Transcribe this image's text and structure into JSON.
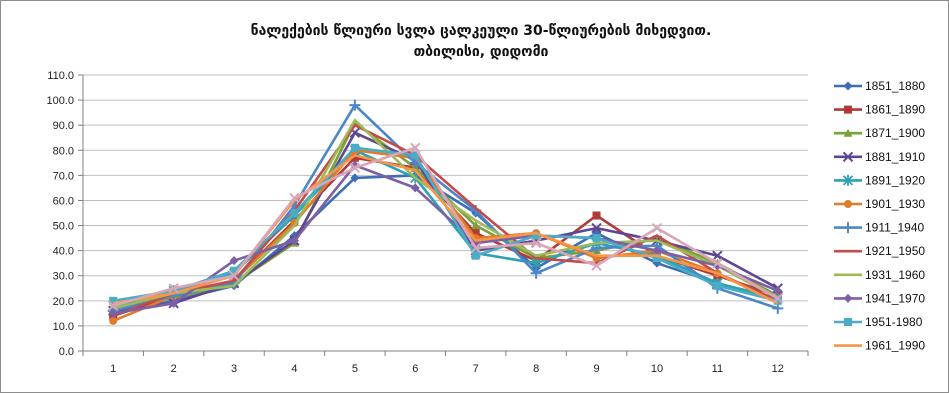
{
  "chart_data": {
    "type": "line",
    "title": "ნალექების წლიური სვლა ცალკეული 30-წლიურების მიხედვით.",
    "subtitle": "თბილისი, დიდომი",
    "xlabel": "",
    "ylabel": "",
    "categories": [
      "1",
      "2",
      "3",
      "4",
      "5",
      "6",
      "7",
      "8",
      "9",
      "10",
      "11",
      "12"
    ],
    "ylim": [
      0,
      110
    ],
    "ytick_labels": [
      "0.0",
      "10.0",
      "20.0",
      "30.0",
      "40.0",
      "50.0",
      "60.0",
      "70.0",
      "80.0",
      "90.0",
      "100.0",
      "110.0"
    ],
    "grid": true,
    "legend_position": "right",
    "series": [
      {
        "name": "1851_1880",
        "color": "#3e6db5",
        "marker": "diamond",
        "values": [
          15,
          20,
          26,
          46,
          69,
          70,
          55,
          33,
          47,
          35,
          27,
          20
        ]
      },
      {
        "name": "1861_1890",
        "color": "#b03a3a",
        "marker": "square",
        "values": [
          14,
          22,
          28,
          52,
          77,
          73,
          47,
          36,
          54,
          38,
          30,
          22
        ]
      },
      {
        "name": "1871_1900",
        "color": "#7ea03a",
        "marker": "triangle",
        "values": [
          18,
          21,
          27,
          43,
          91,
          73,
          50,
          37,
          40,
          45,
          35,
          22
        ]
      },
      {
        "name": "1881_1910",
        "color": "#5e4690",
        "marker": "x",
        "values": [
          16,
          19,
          27,
          44,
          87,
          76,
          40,
          44,
          49,
          44,
          38,
          25
        ]
      },
      {
        "name": "1891_1920",
        "color": "#2ea1b6",
        "marker": "asterisk",
        "values": [
          18,
          24,
          31,
          54,
          80,
          69,
          39,
          35,
          43,
          38,
          27,
          21
        ]
      },
      {
        "name": "1901_1930",
        "color": "#e07b2a",
        "marker": "circle",
        "values": [
          12,
          22,
          28,
          51,
          80,
          77,
          45,
          47,
          37,
          40,
          31,
          20
        ]
      },
      {
        "name": "1911_1940",
        "color": "#4a86c8",
        "marker": "plus",
        "values": [
          16,
          22,
          27,
          58,
          98,
          75,
          56,
          31,
          41,
          42,
          25,
          17
        ]
      },
      {
        "name": "1921_1950",
        "color": "#c44b49",
        "marker": "line",
        "values": [
          14,
          23,
          28,
          56,
          90,
          78,
          57,
          37,
          35,
          46,
          31,
          20
        ]
      },
      {
        "name": "1931_1960",
        "color": "#9bbb59",
        "marker": "line",
        "values": [
          17,
          23,
          26,
          50,
          92,
          69,
          52,
          38,
          43,
          44,
          34,
          21
        ]
      },
      {
        "name": "1941_1970",
        "color": "#7d5fa6",
        "marker": "diamond",
        "values": [
          15,
          19,
          36,
          44,
          74,
          65,
          43,
          46,
          45,
          40,
          34,
          24
        ]
      },
      {
        "name": "1951-1980",
        "color": "#4bacc6",
        "marker": "square",
        "values": [
          20,
          24,
          32,
          55,
          81,
          78,
          38,
          46,
          45,
          37,
          26,
          20
        ]
      },
      {
        "name": "1961_1990",
        "color": "#f79646",
        "marker": "line",
        "values": [
          19,
          23,
          30,
          60,
          78,
          72,
          44,
          47,
          38,
          38,
          31,
          19
        ]
      },
      {
        "name": "",
        "color": "#d9a6b8",
        "marker": "x",
        "values": [
          18,
          25,
          30,
          61,
          73,
          81,
          41,
          43,
          34,
          49,
          35,
          21
        ]
      }
    ]
  }
}
